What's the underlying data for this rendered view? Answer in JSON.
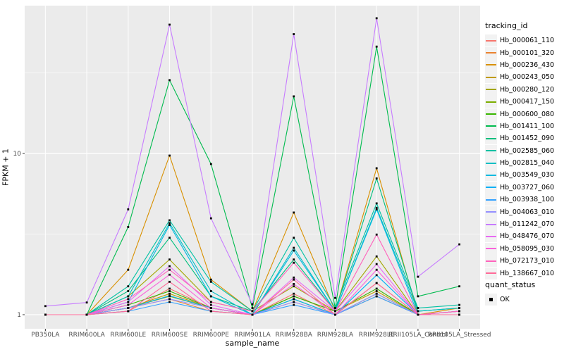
{
  "chart_data": {
    "type": "line",
    "title": "",
    "xlabel": "sample_name",
    "ylabel": "FPKM + 1",
    "y_scale": "log10",
    "y_ticks": [
      1,
      10
    ],
    "y_minor_ticks": [
      3.162,
      31.62
    ],
    "ylim": [
      0.93,
      83
    ],
    "grid": true,
    "panel_bg": "#EBEBEB",
    "grid_color": "#FFFFFF",
    "axis_text_color": "#4D4D4D",
    "tick_color": "#333333",
    "point_shape": "square",
    "point_color": "#000000",
    "legend_position": "right",
    "legend_title": "tracking_id",
    "legend2_title": "quant_status",
    "legend2_items": [
      {
        "label": "OK",
        "shape": "square",
        "color": "#000000"
      }
    ],
    "categories": [
      "PB350LA",
      "RRIM600LA",
      "RRIM600LE",
      "RRIM600SE",
      "RRIM600PE",
      "RRIM901LA",
      "RRIM928BA",
      "RRIM928LA",
      "RRIM928LE",
      "RRII105LA_Control",
      "RRII105LA_Stressed"
    ],
    "series": [
      {
        "name": "Hb_000061_110",
        "color": "#F8766D",
        "values": [
          1.0,
          1.0,
          1.05,
          1.45,
          1.1,
          1.0,
          1.35,
          1.0,
          1.57,
          1.0,
          1.0
        ]
      },
      {
        "name": "Hb_000101_320",
        "color": "#EA8331",
        "values": [
          1.0,
          1.0,
          1.1,
          1.25,
          1.05,
          1.0,
          1.2,
          1.0,
          1.3,
          1.0,
          1.05
        ]
      },
      {
        "name": "Hb_000236_430",
        "color": "#D89000",
        "values": [
          1.0,
          1.0,
          1.9,
          9.7,
          1.65,
          1.05,
          4.3,
          1.05,
          8.1,
          1.0,
          1.1
        ]
      },
      {
        "name": "Hb_000243_050",
        "color": "#C09B00",
        "values": [
          1.0,
          1.0,
          1.1,
          1.35,
          1.1,
          1.0,
          1.3,
          1.05,
          1.4,
          1.0,
          1.0
        ]
      },
      {
        "name": "Hb_000280_120",
        "color": "#A3A500",
        "values": [
          1.0,
          1.0,
          1.3,
          2.2,
          1.2,
          1.05,
          1.5,
          1.05,
          2.3,
          1.0,
          1.05
        ]
      },
      {
        "name": "Hb_000417_150",
        "color": "#7CAE00",
        "values": [
          1.0,
          1.0,
          1.1,
          1.3,
          1.1,
          1.0,
          1.25,
          1.0,
          1.35,
          1.0,
          1.0
        ]
      },
      {
        "name": "Hb_000600_080",
        "color": "#39B600",
        "values": [
          1.0,
          1.0,
          1.15,
          1.4,
          1.1,
          1.0,
          1.3,
          1.05,
          1.45,
          1.0,
          1.0
        ]
      },
      {
        "name": "Hb_001411_100",
        "color": "#00BB4E",
        "values": [
          1.0,
          1.0,
          3.5,
          28.5,
          8.6,
          1.1,
          22.6,
          1.1,
          46.0,
          1.3,
          1.5
        ]
      },
      {
        "name": "Hb_001452_090",
        "color": "#00BF7D",
        "values": [
          1.0,
          1.0,
          1.4,
          3.0,
          1.3,
          1.05,
          2.2,
          1.05,
          7.0,
          1.05,
          1.1
        ]
      },
      {
        "name": "Hb_002585_060",
        "color": "#00C1A3",
        "values": [
          1.0,
          1.0,
          1.5,
          3.85,
          1.6,
          1.05,
          3.0,
          1.1,
          4.9,
          1.1,
          1.15
        ]
      },
      {
        "name": "Hb_002815_040",
        "color": "#00BFC4",
        "values": [
          1.0,
          1.0,
          1.3,
          3.7,
          1.4,
          1.0,
          2.6,
          1.05,
          4.6,
          1.05,
          1.1
        ]
      },
      {
        "name": "Hb_003549_030",
        "color": "#00BAE0",
        "values": [
          1.0,
          1.0,
          1.2,
          3.6,
          1.3,
          1.0,
          2.5,
          1.05,
          4.5,
          1.0,
          1.05
        ]
      },
      {
        "name": "Hb_003727_060",
        "color": "#00B0F6",
        "values": [
          1.0,
          1.0,
          1.1,
          1.31,
          1.1,
          1.0,
          1.25,
          1.0,
          1.76,
          1.0,
          1.0
        ]
      },
      {
        "name": "Hb_003938_100",
        "color": "#35A2FF",
        "values": [
          1.0,
          1.0,
          1.05,
          1.2,
          1.05,
          1.0,
          1.15,
          1.0,
          1.3,
          1.0,
          1.0
        ]
      },
      {
        "name": "Hb_004063_010",
        "color": "#9590FF",
        "values": [
          1.0,
          1.0,
          1.1,
          1.25,
          1.1,
          1.0,
          1.2,
          1.0,
          1.35,
          1.0,
          1.0
        ]
      },
      {
        "name": "Hb_011242_070",
        "color": "#C77CFF",
        "values": [
          1.13,
          1.19,
          4.5,
          63.0,
          3.96,
          1.16,
          55.0,
          1.27,
          69.0,
          1.72,
          2.73
        ]
      },
      {
        "name": "Hb_048476_070",
        "color": "#E76BF3",
        "values": [
          1.0,
          1.0,
          1.2,
          2.0,
          1.15,
          1.0,
          1.7,
          1.05,
          2.06,
          1.0,
          1.05
        ]
      },
      {
        "name": "Hb_058095_030",
        "color": "#FA62DB",
        "values": [
          1.0,
          1.0,
          1.15,
          1.77,
          1.1,
          1.0,
          1.55,
          1.0,
          1.9,
          1.0,
          1.0
        ]
      },
      {
        "name": "Hb_072173_010",
        "color": "#FF62BC",
        "values": [
          1.0,
          1.0,
          1.25,
          1.9,
          1.2,
          1.05,
          2.1,
          1.05,
          3.14,
          1.0,
          1.05
        ]
      },
      {
        "name": "Hb_138667_010",
        "color": "#FF6A98",
        "values": [
          1.0,
          1.0,
          1.05,
          1.6,
          1.05,
          1.0,
          1.65,
          1.0,
          1.57,
          1.0,
          1.0
        ]
      }
    ]
  }
}
